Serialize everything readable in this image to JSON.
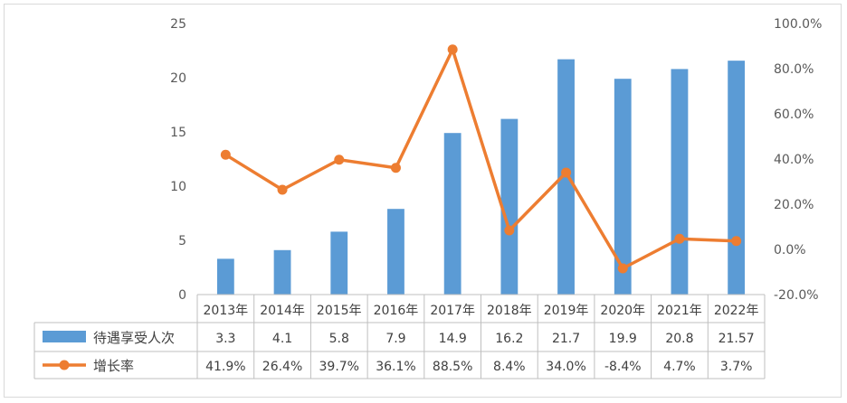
{
  "chart_data": {
    "type": "bar",
    "categories": [
      "2013年",
      "2014年",
      "2015年",
      "2016年",
      "2017年",
      "2018年",
      "2019年",
      "2020年",
      "2021年",
      "2022年"
    ],
    "series": [
      {
        "name": "待遇享受人次",
        "type": "bar",
        "axis": "left",
        "color": "#5b9bd5",
        "values": [
          3.3,
          4.1,
          5.8,
          7.9,
          14.9,
          16.2,
          21.7,
          19.9,
          20.8,
          21.57
        ],
        "labels": [
          "3.3",
          "4.1",
          "5.8",
          "7.9",
          "14.9",
          "16.2",
          "21.7",
          "19.9",
          "20.8",
          "21.57"
        ]
      },
      {
        "name": "增长率",
        "type": "line",
        "axis": "right",
        "color": "#ed7d31",
        "values": [
          41.9,
          26.4,
          39.7,
          36.1,
          88.5,
          8.4,
          34.0,
          -8.4,
          4.7,
          3.7
        ],
        "labels": [
          "41.9%",
          "26.4%",
          "39.7%",
          "36.1%",
          "88.5%",
          "8.4%",
          "34.0%",
          "-8.4%",
          "4.7%",
          "3.7%"
        ]
      }
    ],
    "y_left": {
      "ylim": [
        0,
        25
      ],
      "ticks": [
        "0",
        "5",
        "10",
        "15",
        "20",
        "25"
      ]
    },
    "y_right": {
      "ylim": [
        -20,
        100
      ],
      "ticks": [
        "-20.0%",
        "0.0%",
        "20.0%",
        "40.0%",
        "60.0%",
        "80.0%",
        "100.0%"
      ]
    },
    "grid": false,
    "legend": "data-table-bottom"
  }
}
